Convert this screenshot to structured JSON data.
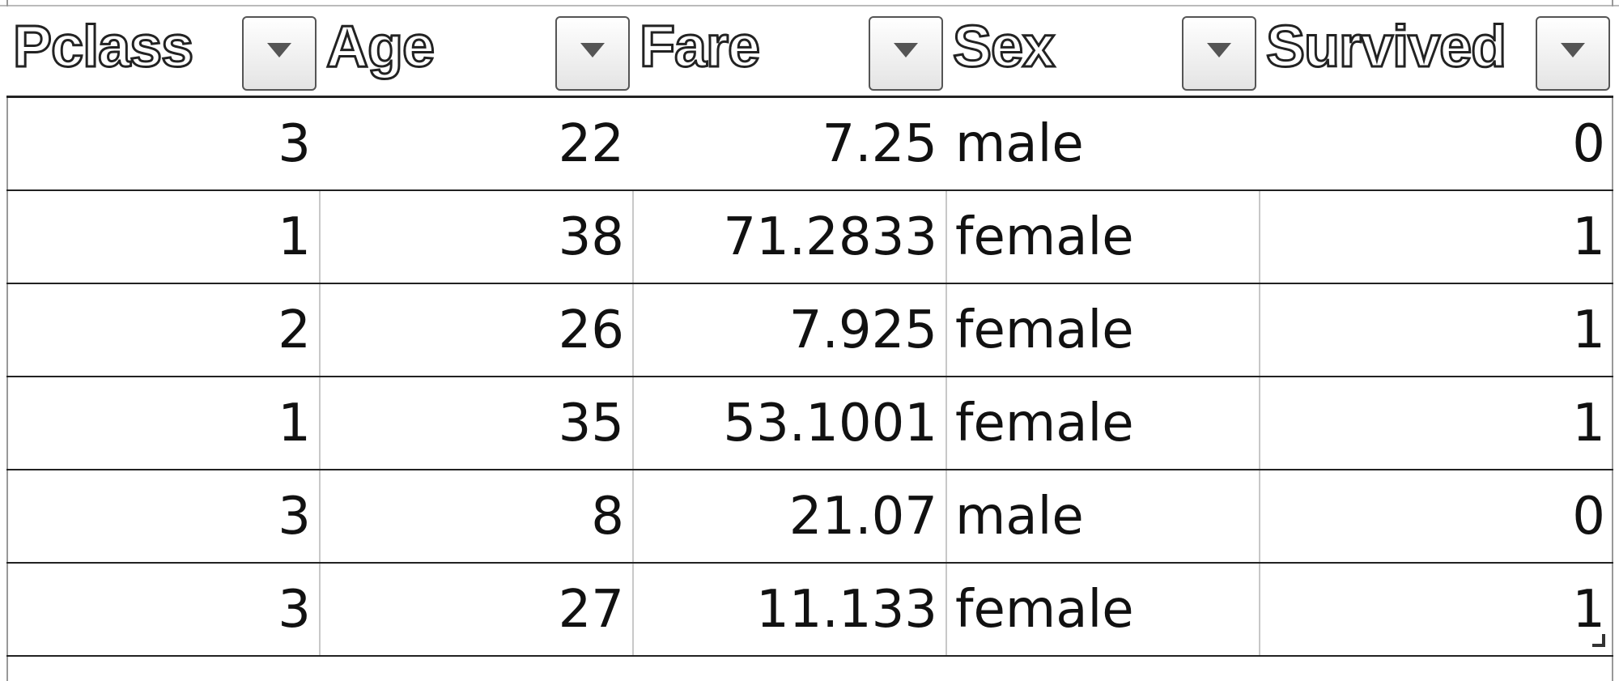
{
  "table": {
    "columns": [
      {
        "label": "Pclass",
        "filter_icon": "dropdown-arrow"
      },
      {
        "label": "Age",
        "filter_icon": "dropdown-arrow"
      },
      {
        "label": "Fare",
        "filter_icon": "dropdown-arrow"
      },
      {
        "label": "Sex",
        "filter_icon": "dropdown-arrow"
      },
      {
        "label": "Survived",
        "filter_icon": "dropdown-arrow"
      }
    ],
    "rows": [
      [
        "3",
        "22",
        "7.25",
        "male",
        "0"
      ],
      [
        "1",
        "38",
        "71.2833",
        "female",
        "1"
      ],
      [
        "2",
        "26",
        "7.925",
        "female",
        "1"
      ],
      [
        "1",
        "35",
        "53.1001",
        "female",
        "1"
      ],
      [
        "3",
        "8",
        "21.07",
        "male",
        "0"
      ],
      [
        "3",
        "27",
        "11.133",
        "female",
        "1"
      ]
    ]
  },
  "colors": {
    "header_text_fill": "#ffffff",
    "header_text_outline": "#222222",
    "border": "#222222",
    "cell_text": "#111111"
  }
}
